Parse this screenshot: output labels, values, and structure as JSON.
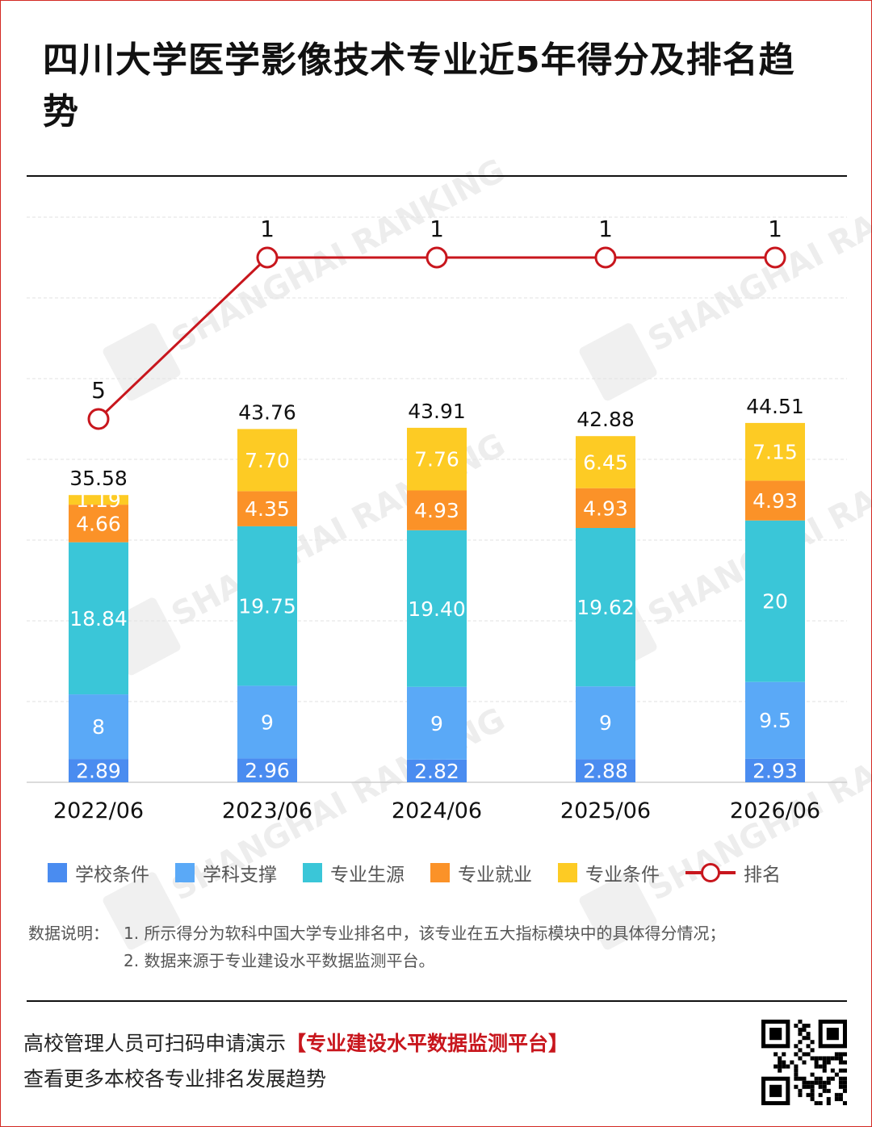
{
  "title": "四川大学医学影像技术专业近5年得分及排名趋势",
  "watermark": "SHANGHAI RANKING",
  "chart_data": {
    "type": "bar",
    "stacked": true,
    "categories": [
      "2022/06",
      "2023/06",
      "2024/06",
      "2025/06",
      "2026/06"
    ],
    "series": [
      {
        "name": "学校条件",
        "color": "#4a8cf0",
        "values": [
          2.89,
          2.96,
          2.82,
          2.88,
          2.93
        ],
        "labels": [
          "2.89",
          "2.96",
          "2.82",
          "2.88",
          "2.93"
        ]
      },
      {
        "name": "学科支撑",
        "color": "#5aa9f7",
        "values": [
          8,
          9,
          9,
          9,
          9.5
        ],
        "labels": [
          "8",
          "9",
          "9",
          "9",
          "9.5"
        ]
      },
      {
        "name": "专业生源",
        "color": "#3ac6d8",
        "values": [
          18.84,
          19.75,
          19.4,
          19.62,
          20
        ],
        "labels": [
          "18.84",
          "19.75",
          "19.40",
          "19.62",
          "20"
        ]
      },
      {
        "name": "专业就业",
        "color": "#fb9228",
        "values": [
          4.66,
          4.35,
          4.93,
          4.93,
          4.93
        ],
        "labels": [
          "4.66",
          "4.35",
          "4.93",
          "4.93",
          "4.93"
        ]
      },
      {
        "name": "专业条件",
        "color": "#fdcb24",
        "values": [
          1.19,
          7.7,
          7.76,
          6.45,
          7.15
        ],
        "labels": [
          "1.19",
          "7.70",
          "7.76",
          "6.45",
          "7.15"
        ]
      }
    ],
    "totals": [
      "35.58",
      "43.76",
      "43.91",
      "42.88",
      "44.51"
    ],
    "rank": {
      "name": "排名",
      "color": "#c8161d",
      "values": [
        5,
        1,
        1,
        1,
        1
      ],
      "labels": [
        "5",
        "1",
        "1",
        "1",
        "1"
      ]
    },
    "ylim": [
      0,
      70
    ],
    "grid": true,
    "legend_position": "bottom"
  },
  "notes": {
    "label": "数据说明：",
    "items": [
      "1. 所示得分为软科中国大学专业排名中，该专业在五大指标模块中的具体得分情况；",
      "2. 数据来源于专业建设水平数据监测平台。"
    ]
  },
  "footer": {
    "line1_prefix": "高校管理人员可扫码申请演示",
    "line1_highlight": "【专业建设水平数据监测平台】",
    "line2": "查看更多本校各专业排名发展趋势"
  }
}
